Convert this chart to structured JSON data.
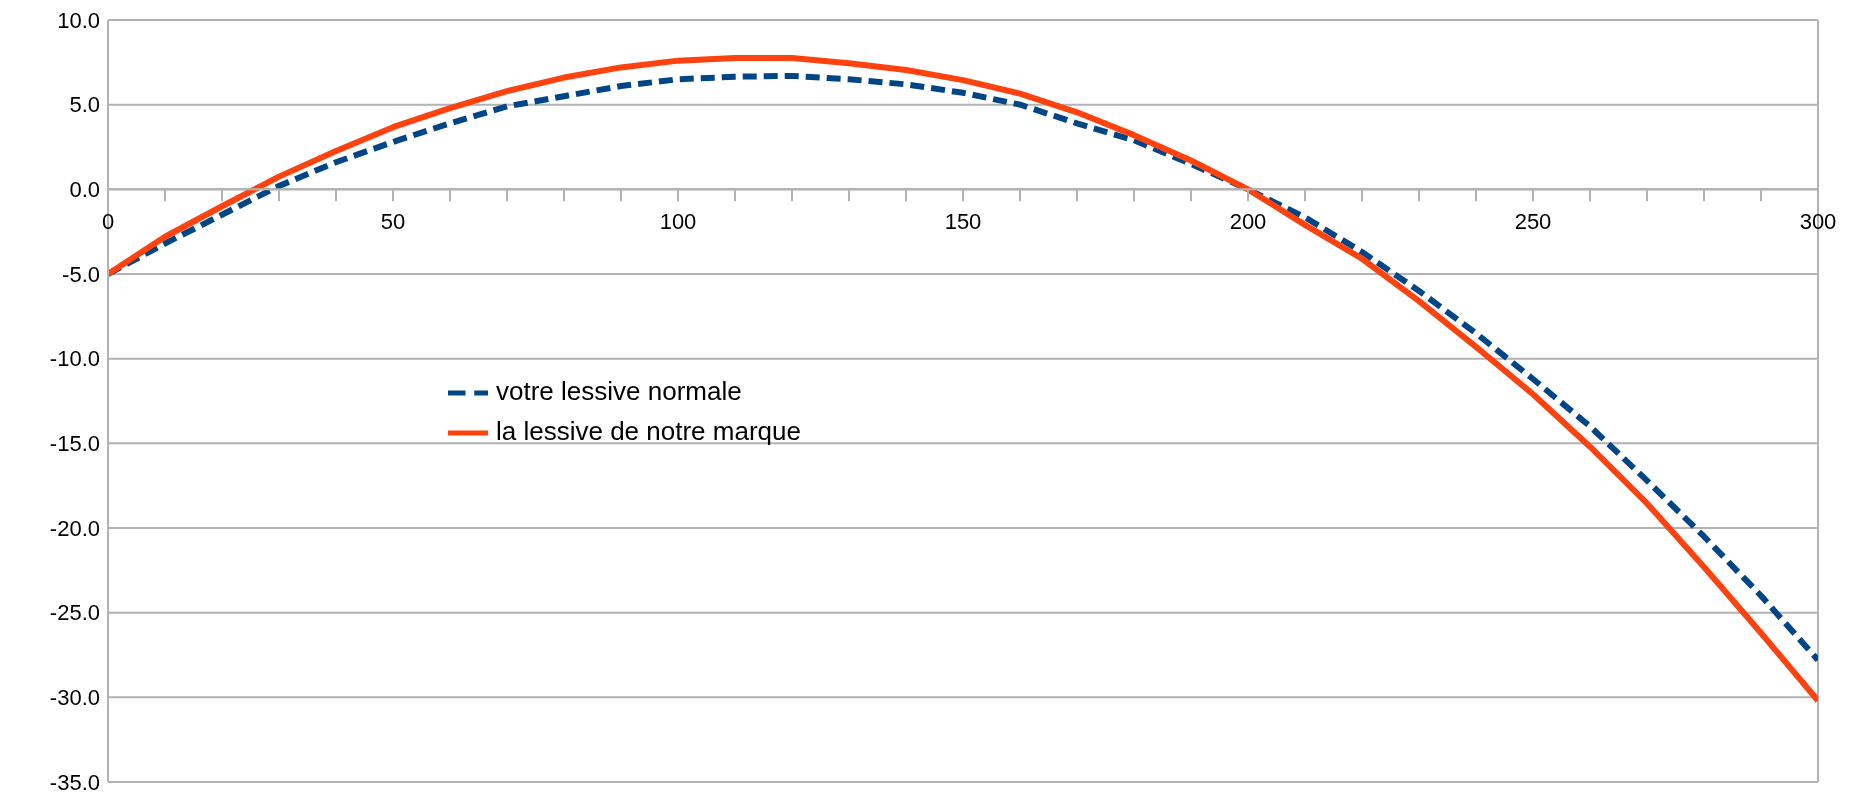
{
  "chart_data": {
    "type": "line",
    "x": [
      0,
      10,
      20,
      30,
      40,
      50,
      60,
      70,
      80,
      90,
      100,
      110,
      120,
      130,
      140,
      150,
      160,
      170,
      180,
      190,
      200,
      210,
      220,
      230,
      240,
      250,
      260,
      270,
      280,
      290,
      300
    ],
    "series": [
      {
        "name": "votre lessive normale",
        "color": "#004586",
        "line_style": "dashed",
        "values": [
          -5,
          -3.2,
          -1.5,
          0.2,
          1.6,
          2.8,
          3.9,
          4.9,
          5.5,
          6.1,
          6.5,
          6.65,
          6.7,
          6.5,
          6.2,
          5.7,
          5.0,
          3.9,
          2.9,
          1.5,
          0,
          -1.65,
          -3.7,
          -6.0,
          -8.5,
          -11.2,
          -14.0,
          -17.2,
          -20.5,
          -24.0,
          -27.8
        ]
      },
      {
        "name": "la lessive de notre marque",
        "color": "#ff420e",
        "line_style": "solid",
        "values": [
          -5,
          -2.8,
          -1.0,
          0.75,
          2.26,
          3.67,
          4.8,
          5.8,
          6.6,
          7.2,
          7.6,
          7.75,
          7.75,
          7.45,
          7.05,
          6.45,
          5.65,
          4.55,
          3.2,
          1.7,
          0,
          -2.1,
          -4.1,
          -6.6,
          -9.3,
          -12.1,
          -15.2,
          -18.55,
          -22.3,
          -26.2,
          -30.2
        ]
      }
    ],
    "xlim": [
      0,
      300
    ],
    "xticks": [
      0,
      {
        "value": 10,
        "label": null
      },
      {
        "value": 20,
        "label": null
      },
      {
        "value": 30,
        "label": null
      },
      {
        "value": 40,
        "label": null
      },
      50,
      {
        "value": 60,
        "label": null
      },
      {
        "value": 70,
        "label": null
      },
      {
        "value": 80,
        "label": null
      },
      {
        "value": 90,
        "label": null
      },
      100,
      {
        "value": 110,
        "label": null
      },
      {
        "value": 120,
        "label": null
      },
      {
        "value": 130,
        "label": null
      },
      {
        "value": 140,
        "label": null
      },
      150,
      {
        "value": 160,
        "label": null
      },
      {
        "value": 170,
        "label": null
      },
      {
        "value": 180,
        "label": null
      },
      {
        "value": 190,
        "label": null
      },
      200,
      {
        "value": 210,
        "label": null
      },
      {
        "value": 220,
        "label": null
      },
      {
        "value": 230,
        "label": null
      },
      {
        "value": 240,
        "label": null
      },
      250,
      {
        "value": 260,
        "label": null
      },
      {
        "value": 270,
        "label": null
      },
      {
        "value": 280,
        "label": null
      },
      {
        "value": 290,
        "label": null
      },
      300
    ],
    "ylim": [
      -35,
      10
    ],
    "yticks": [
      {
        "value": -35,
        "label": "-35.0"
      },
      {
        "value": -30,
        "label": "-30.0"
      },
      {
        "value": -25,
        "label": "-25.0"
      },
      {
        "value": -20,
        "label": "-20.0"
      },
      {
        "value": -15,
        "label": "-15.0"
      },
      {
        "value": -10,
        "label": "-10.0"
      },
      {
        "value": -5,
        "label": "-5.0"
      },
      {
        "value": 0,
        "label": "0.0"
      },
      {
        "value": 5,
        "label": "5.0"
      },
      {
        "value": 10,
        "label": "10.0"
      }
    ],
    "grid": "y",
    "legend": "left",
    "marker": "none"
  }
}
